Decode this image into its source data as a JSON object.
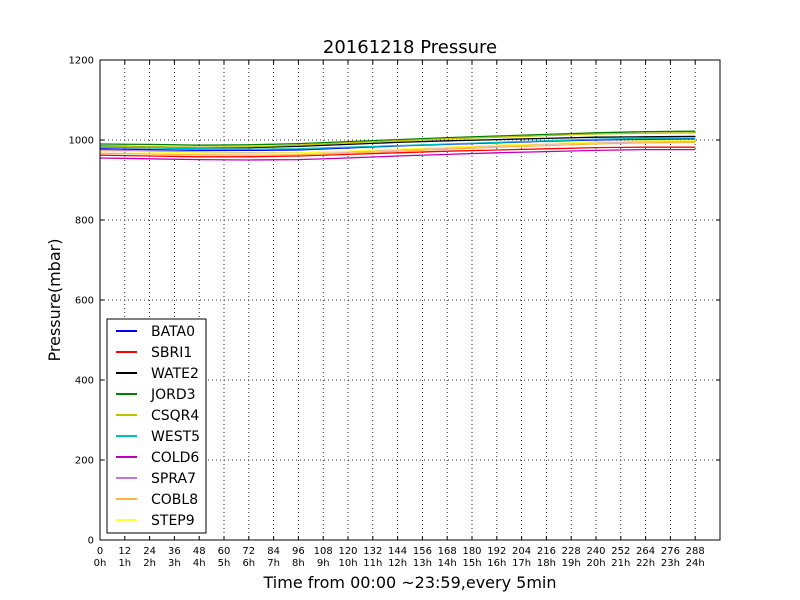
{
  "chart_data": {
    "type": "line",
    "title": "20161218 Pressure",
    "xlabel": "Time from 00:00 ~23:59,every 5min",
    "ylabel": "Pressure(mbar)",
    "xlim": [
      0,
      300
    ],
    "ylim": [
      0,
      1200
    ],
    "grid": true,
    "legend_position": "lower-left",
    "x_ticks": [
      0,
      12,
      24,
      36,
      48,
      60,
      72,
      84,
      96,
      108,
      120,
      132,
      144,
      156,
      168,
      180,
      192,
      204,
      216,
      228,
      240,
      252,
      264,
      276,
      288
    ],
    "x_tick_hours": [
      "0h",
      "1h",
      "2h",
      "3h",
      "4h",
      "5h",
      "6h",
      "7h",
      "8h",
      "9h",
      "10h",
      "11h",
      "12h",
      "13h",
      "14h",
      "15h",
      "16h",
      "17h",
      "18h",
      "19h",
      "20h",
      "21h",
      "22h",
      "23h",
      "24h"
    ],
    "y_ticks": [
      0,
      200,
      400,
      600,
      800,
      1000,
      1200
    ],
    "x": [
      0,
      24,
      48,
      72,
      96,
      120,
      144,
      168,
      192,
      216,
      240,
      264,
      288
    ],
    "series": [
      {
        "name": "BATA0",
        "color": "#0000ff",
        "values": [
          978,
          976,
          974,
          974,
          975,
          980,
          985,
          989,
          993,
          997,
          1000,
          1002,
          1003
        ]
      },
      {
        "name": "SBRI1",
        "color": "#ff0000",
        "values": [
          962,
          960,
          958,
          958,
          960,
          964,
          968,
          972,
          975,
          978,
          981,
          982,
          982
        ]
      },
      {
        "name": "WATE2",
        "color": "#000000",
        "values": [
          985,
          983,
          981,
          981,
          984,
          989,
          994,
          998,
          1001,
          1004,
          1007,
          1008,
          1009
        ]
      },
      {
        "name": "JORD3",
        "color": "#008000",
        "values": [
          990,
          989,
          987,
          988,
          991,
          996,
          1001,
          1006,
          1010,
          1014,
          1018,
          1021,
          1022
        ]
      },
      {
        "name": "CSQR4",
        "color": "#bfbf00",
        "values": [
          984,
          983,
          982,
          983,
          987,
          993,
          998,
          1003,
          1007,
          1011,
          1015,
          1017,
          1018
        ]
      },
      {
        "name": "WEST5",
        "color": "#00bfbf",
        "values": [
          982,
          980,
          978,
          977,
          978,
          982,
          986,
          990,
          994,
          998,
          1002,
          1004,
          1005
        ]
      },
      {
        "name": "COLD6",
        "color": "#bf00bf",
        "values": [
          955,
          953,
          951,
          950,
          951,
          955,
          960,
          964,
          968,
          971,
          974,
          976,
          976
        ]
      },
      {
        "name": "SPRA7",
        "color": "#bf77cf",
        "values": [
          975,
          972,
          970,
          968,
          968,
          971,
          976,
          981,
          986,
          990,
          994,
          997,
          998
        ]
      },
      {
        "name": "COBL8",
        "color": "#ffb347",
        "values": [
          967,
          965,
          963,
          962,
          963,
          967,
          972,
          977,
          982,
          986,
          990,
          993,
          994
        ]
      },
      {
        "name": "STEP9",
        "color": "#ffff33",
        "values": [
          972,
          970,
          968,
          967,
          968,
          972,
          977,
          982,
          987,
          991,
          995,
          998,
          999
        ]
      }
    ]
  }
}
